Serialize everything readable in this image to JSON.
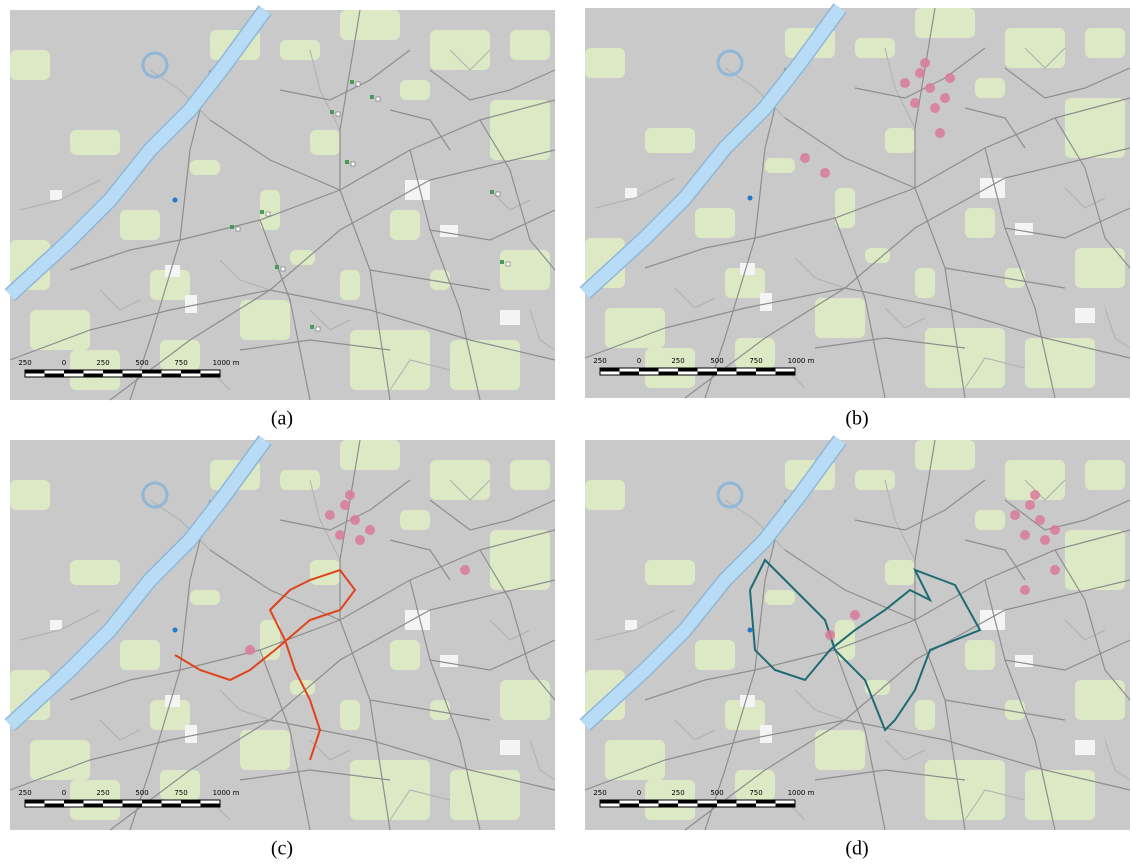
{
  "panels": [
    {
      "label": "(a)",
      "scale_labels": [
        "250",
        "0",
        "250",
        "500",
        "750",
        "1000 m"
      ]
    },
    {
      "label": "(b)",
      "scale_labels": [
        "250",
        "0",
        "250",
        "500",
        "750",
        "1000 m"
      ]
    },
    {
      "label": "(c)",
      "scale_labels": [
        "250",
        "0",
        "250",
        "500",
        "750",
        "1000 m"
      ]
    },
    {
      "label": "(d)",
      "scale_labels": [
        "250",
        "0",
        "250",
        "500",
        "750",
        "1000 m"
      ]
    }
  ]
}
